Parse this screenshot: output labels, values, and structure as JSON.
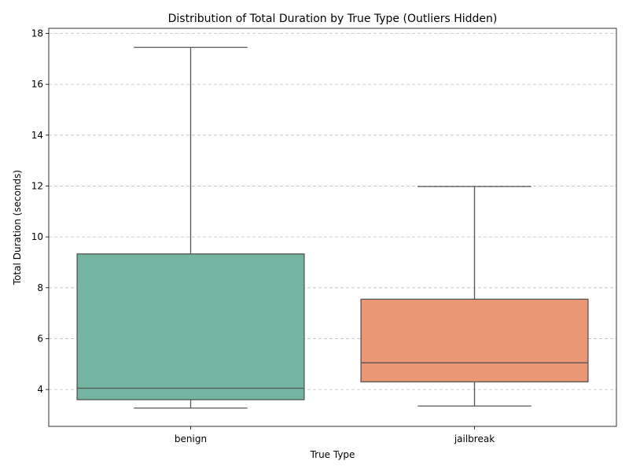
{
  "chart_data": {
    "type": "box",
    "title": "Distribution of Total Duration by True Type (Outliers Hidden)",
    "xlabel": "True Type",
    "ylabel": "Total Duration (seconds)",
    "ylim": [
      2.55,
      18.2
    ],
    "yticks": [
      4,
      6,
      8,
      10,
      12,
      14,
      16,
      18
    ],
    "grid": "y",
    "categories": [
      "benign",
      "jailbreak"
    ],
    "boxes": [
      {
        "category": "benign",
        "whisker_low": 3.27,
        "q1": 3.6,
        "median": 4.05,
        "q3": 9.33,
        "whisker_high": 17.45,
        "color": "#72b5a0"
      },
      {
        "category": "jailbreak",
        "whisker_low": 3.35,
        "q1": 4.3,
        "median": 5.05,
        "q3": 7.55,
        "whisker_high": 11.98,
        "color": "#ea9776"
      }
    ]
  }
}
